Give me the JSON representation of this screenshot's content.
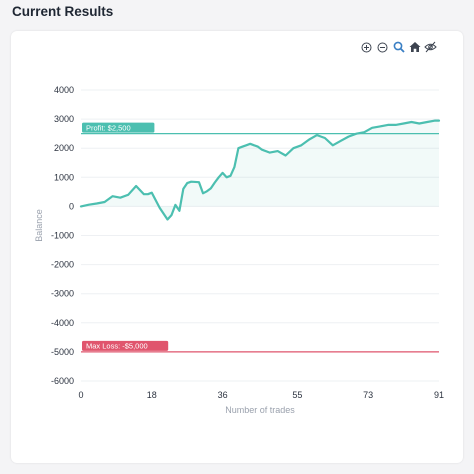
{
  "page": {
    "title": "Current Results"
  },
  "toolbar": {
    "icons": [
      "zoom-in-icon",
      "zoom-out-icon",
      "magnify-icon",
      "home-icon",
      "hide-icon"
    ],
    "accent": "#3a7fc4"
  },
  "chart_data": {
    "type": "area",
    "xlabel": "Number of trades",
    "ylabel": "Balance",
    "xlim": [
      0,
      91
    ],
    "ylim": [
      -6000,
      4000
    ],
    "x_ticks": [
      "0",
      "18",
      "36",
      "55",
      "73",
      "91"
    ],
    "y_ticks": [
      "4000",
      "3000",
      "2000",
      "1000",
      "0",
      "-1000",
      "-2000",
      "-3000",
      "-4000",
      "-5000",
      "-6000"
    ],
    "grid": true,
    "line_color": "#4cbfb0",
    "series": [
      {
        "x": [
          0,
          2,
          4,
          6,
          8,
          10,
          12,
          14,
          16,
          17,
          18,
          20,
          22,
          23,
          24,
          25,
          26,
          27,
          28,
          30,
          31,
          32,
          33,
          34,
          35,
          36,
          37,
          38,
          39,
          40,
          41,
          42,
          43,
          44,
          45,
          46,
          48,
          50,
          52,
          54,
          56,
          58,
          60,
          62,
          64,
          66,
          68,
          70,
          72,
          74,
          76,
          78,
          80,
          82,
          84,
          86,
          88,
          90,
          91
        ],
        "y": [
          0,
          60,
          100,
          150,
          350,
          300,
          400,
          700,
          420,
          420,
          470,
          -50,
          -450,
          -300,
          50,
          -150,
          600,
          800,
          850,
          830,
          450,
          520,
          620,
          820,
          1000,
          1150,
          1000,
          1050,
          1350,
          2000,
          2050,
          2100,
          2150,
          2100,
          2050,
          1950,
          1850,
          1900,
          1750,
          2000,
          2100,
          2300,
          2450,
          2350,
          2100,
          2250,
          2400,
          2500,
          2550,
          2700,
          2750,
          2800,
          2800,
          2850,
          2900,
          2850,
          2900,
          2950,
          2950
        ]
      }
    ],
    "annotations": [
      {
        "label": "Profit: $2,500",
        "y": 2500,
        "color": "#4cbfb0"
      },
      {
        "label": "Max Loss: -$5,000",
        "y": -5000,
        "color": "#e0556d"
      }
    ]
  }
}
